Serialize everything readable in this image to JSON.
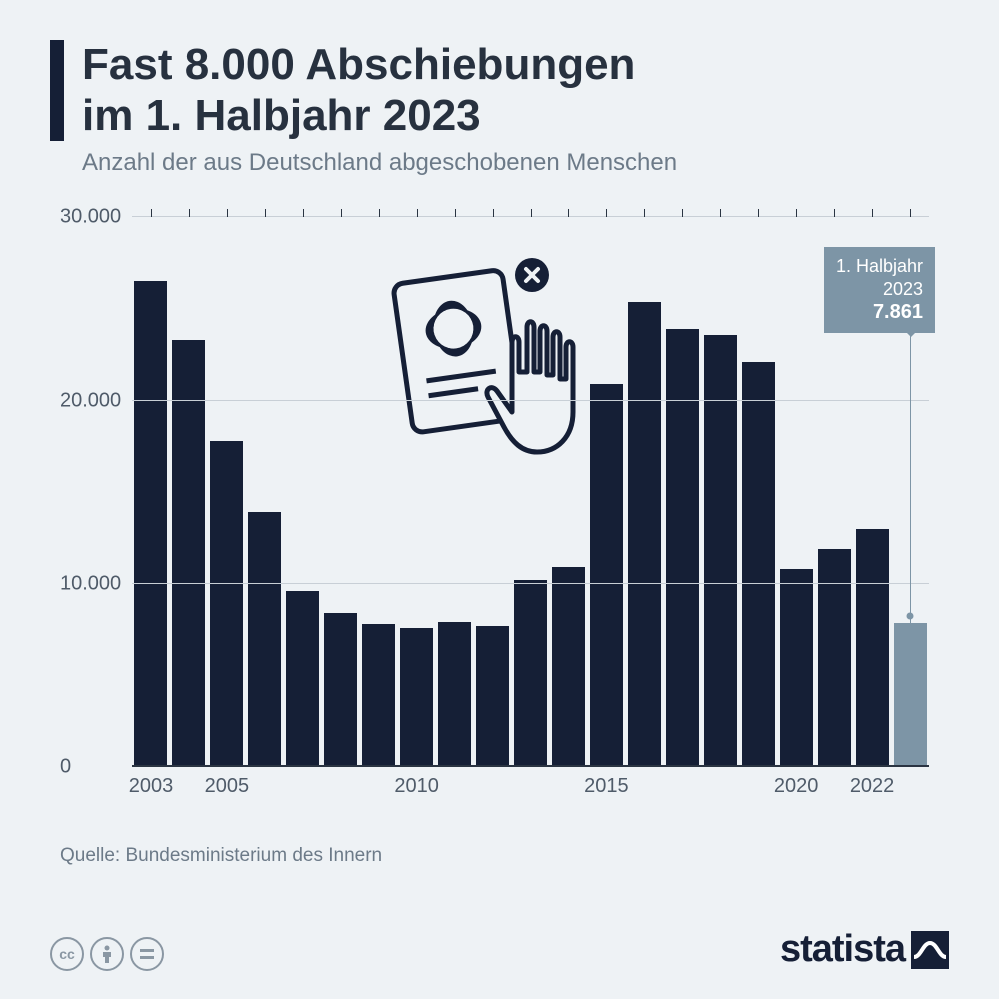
{
  "title_line1": "Fast 8.000 Abschiebungen",
  "title_line2": "im 1. Halbjahr 2023",
  "subtitle": "Anzahl der aus Deutschland abgeschobenen Menschen",
  "source_label": "Quelle: Bundesministerium des Innern",
  "brand": "statista",
  "chart": {
    "type": "bar",
    "ylim": [
      0,
      30000
    ],
    "ytick_step": 10000,
    "ytick_labels": [
      "0",
      "10.000",
      "20.000",
      "30.000"
    ],
    "x_visible_labels": [
      {
        "year": 2003,
        "text": "2003"
      },
      {
        "year": 2005,
        "text": "2005"
      },
      {
        "year": 2010,
        "text": "2010"
      },
      {
        "year": 2015,
        "text": "2015"
      },
      {
        "year": 2020,
        "text": "2020"
      },
      {
        "year": 2022,
        "text": "2022"
      }
    ],
    "years": [
      2003,
      2004,
      2005,
      2006,
      2007,
      2008,
      2009,
      2010,
      2011,
      2012,
      2013,
      2014,
      2015,
      2016,
      2017,
      2018,
      2019,
      2020,
      2021,
      2022,
      2023
    ],
    "values": [
      26500,
      23300,
      17800,
      13900,
      9600,
      8400,
      7800,
      7600,
      7900,
      7700,
      10200,
      10900,
      20900,
      25400,
      23900,
      23600,
      22100,
      10800,
      11900,
      13000,
      7861
    ],
    "highlight_index": 20,
    "bar_color": "#151f36",
    "highlight_color": "#7d95a6",
    "background_color": "#eef2f5",
    "grid_color": "#c8cfd6",
    "callout": {
      "line1": "1. Halbjahr",
      "line2": "2023",
      "value": "7.861"
    }
  }
}
